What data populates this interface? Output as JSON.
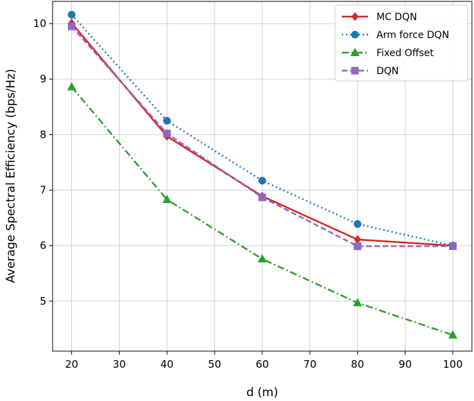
{
  "chart_data": {
    "type": "line",
    "xlabel": "d (m)",
    "ylabel": "Average Spectral Efficiency (bps/Hz)",
    "xlim": [
      16,
      104
    ],
    "ylim": [
      4.1,
      10.4
    ],
    "xticks": [
      20,
      30,
      40,
      50,
      60,
      70,
      80,
      90,
      100
    ],
    "yticks": [
      5,
      6,
      7,
      8,
      9,
      10
    ],
    "grid": true,
    "legend_position": "top-right",
    "x": [
      20,
      40,
      60,
      80,
      100
    ],
    "series": [
      {
        "name": "MC DQN",
        "values": [
          10.01,
          7.97,
          6.89,
          6.11,
          6.0
        ],
        "color": "#d62728",
        "dash": "solid",
        "marker": "diamond"
      },
      {
        "name": "Arm force DQN",
        "values": [
          10.16,
          8.25,
          7.17,
          6.39,
          6.0
        ],
        "color": "#1f77b4",
        "dash": "dotted",
        "marker": "circle"
      },
      {
        "name": "Fixed Offset",
        "values": [
          8.86,
          6.83,
          5.76,
          4.97,
          4.39
        ],
        "color": "#2ca02c",
        "dash": "dashdot",
        "marker": "triangle"
      },
      {
        "name": "DQN",
        "values": [
          9.95,
          8.02,
          6.87,
          5.99,
          5.99
        ],
        "color": "#9467bd",
        "dash": "dashed",
        "marker": "square"
      }
    ]
  }
}
